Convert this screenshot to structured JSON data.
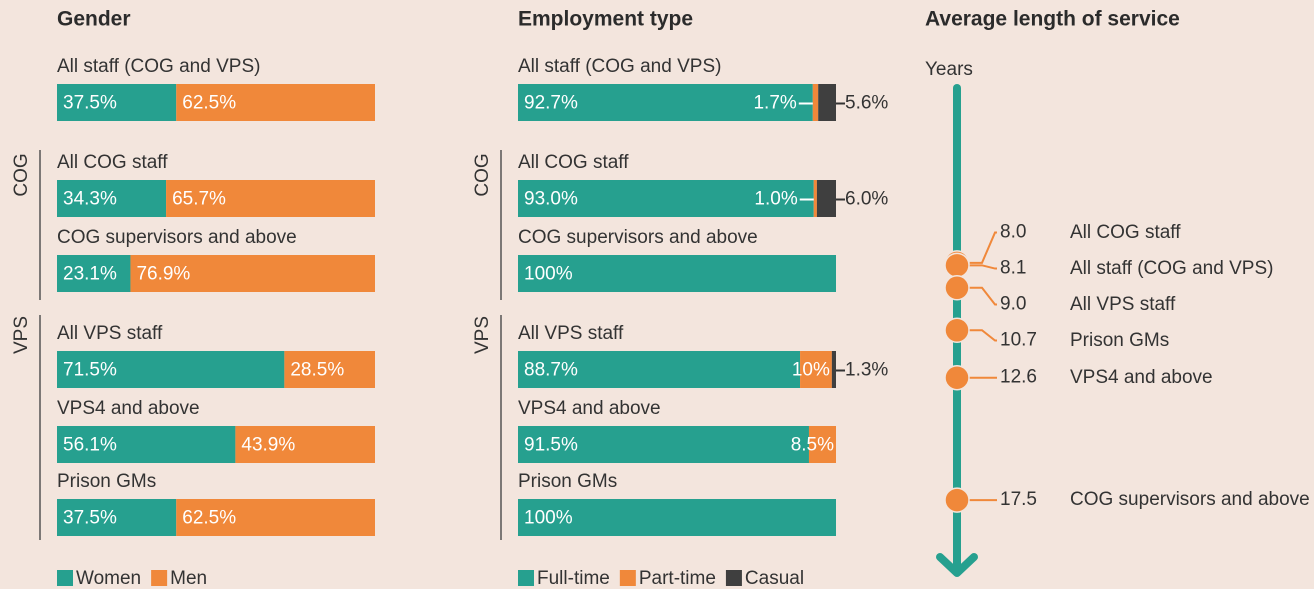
{
  "chart_data": [
    {
      "type": "bar",
      "orientation": "horizontal",
      "stacked": true,
      "title": "Gender",
      "categories": [
        "All staff (COG and VPS)",
        "All COG staff",
        "COG supervisors and above",
        "All VPS staff",
        "VPS4 and above",
        "Prison GMs"
      ],
      "groups": [
        "COG",
        "VPS"
      ],
      "xlim": [
        0,
        100
      ],
      "series": [
        {
          "name": "Women",
          "color": "#26a08f",
          "values": [
            37.5,
            34.3,
            23.1,
            71.5,
            56.1,
            37.5
          ],
          "value_labels": [
            "37.5%",
            "34.3%",
            "23.1%",
            "71.5%",
            "56.1%",
            "37.5%"
          ]
        },
        {
          "name": "Men",
          "color": "#f0883a",
          "values": [
            62.5,
            65.7,
            76.9,
            28.5,
            43.9,
            62.5
          ],
          "value_labels": [
            "62.5%",
            "65.7%",
            "76.9%",
            "28.5%",
            "43.9%",
            "62.5%"
          ]
        }
      ]
    },
    {
      "type": "bar",
      "orientation": "horizontal",
      "stacked": true,
      "title": "Employment type",
      "categories": [
        "All staff (COG and VPS)",
        "All COG staff",
        "COG supervisors and above",
        "All VPS staff",
        "VPS4 and above",
        "Prison GMs"
      ],
      "groups": [
        "COG",
        "VPS"
      ],
      "xlim": [
        0,
        100
      ],
      "series": [
        {
          "name": "Full-time",
          "color": "#26a08f",
          "values": [
            92.7,
            93.0,
            100,
            88.7,
            91.5,
            100
          ],
          "value_labels": [
            "92.7%",
            "93.0%",
            "100%",
            "88.7%",
            "91.5%",
            "100%"
          ]
        },
        {
          "name": "Part-time",
          "color": "#f0883a",
          "values": [
            1.7,
            1.0,
            0,
            10,
            8.5,
            0
          ],
          "value_labels": [
            "1.7%",
            "1.0%",
            null,
            "10%",
            "8.5%",
            null
          ]
        },
        {
          "name": "Casual",
          "color": "#3f3f3f",
          "values": [
            5.6,
            6.0,
            0,
            1.3,
            0,
            0
          ],
          "value_labels": [
            "5.6%",
            "6.0%",
            null,
            "1.3%",
            null,
            null
          ]
        }
      ]
    },
    {
      "type": "dot",
      "title": "Average length of service",
      "y_label": "Years",
      "categories": [
        "All COG staff",
        "All staff (COG and VPS)",
        "All VPS staff",
        "Prison GMs",
        "VPS4 and above",
        "COG supervisors and above"
      ],
      "values": [
        8.0,
        8.1,
        9.0,
        10.7,
        12.6,
        17.5
      ],
      "value_labels": [
        "8.0",
        "8.1",
        "9.0",
        "10.7",
        "12.6",
        "17.5"
      ],
      "ylim": [
        1,
        20.5
      ],
      "color": "#f0883a",
      "axis_color": "#26a08f"
    }
  ]
}
